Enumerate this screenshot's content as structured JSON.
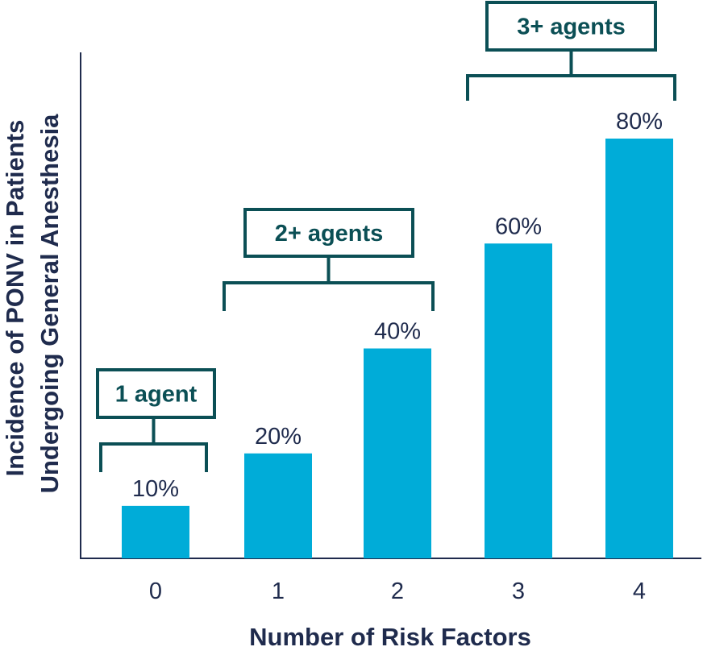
{
  "chart_data": {
    "type": "bar",
    "categories": [
      "0",
      "1",
      "2",
      "3",
      "4"
    ],
    "values": [
      10,
      20,
      40,
      60,
      80
    ],
    "value_labels": [
      "10%",
      "20%",
      "40%",
      "60%",
      "80%"
    ],
    "xlabel": "Number of Risk Factors",
    "ylabel_lines": [
      "Incidence of PONV in Patients",
      "Undergoing General Anesthesia"
    ],
    "ylim": [
      0,
      100
    ],
    "grid": false,
    "annotations": [
      {
        "text": "1 agent",
        "from_category": 0,
        "to_category": 0
      },
      {
        "text": "2+ agents",
        "from_category": 1,
        "to_category": 2
      },
      {
        "text": "3+ agents",
        "from_category": 3,
        "to_category": 4
      }
    ]
  },
  "colors": {
    "bar": "#00acd8",
    "text": "#1f2b4d",
    "annotation": "#0b4f55",
    "axis": "#1f2b4d"
  }
}
